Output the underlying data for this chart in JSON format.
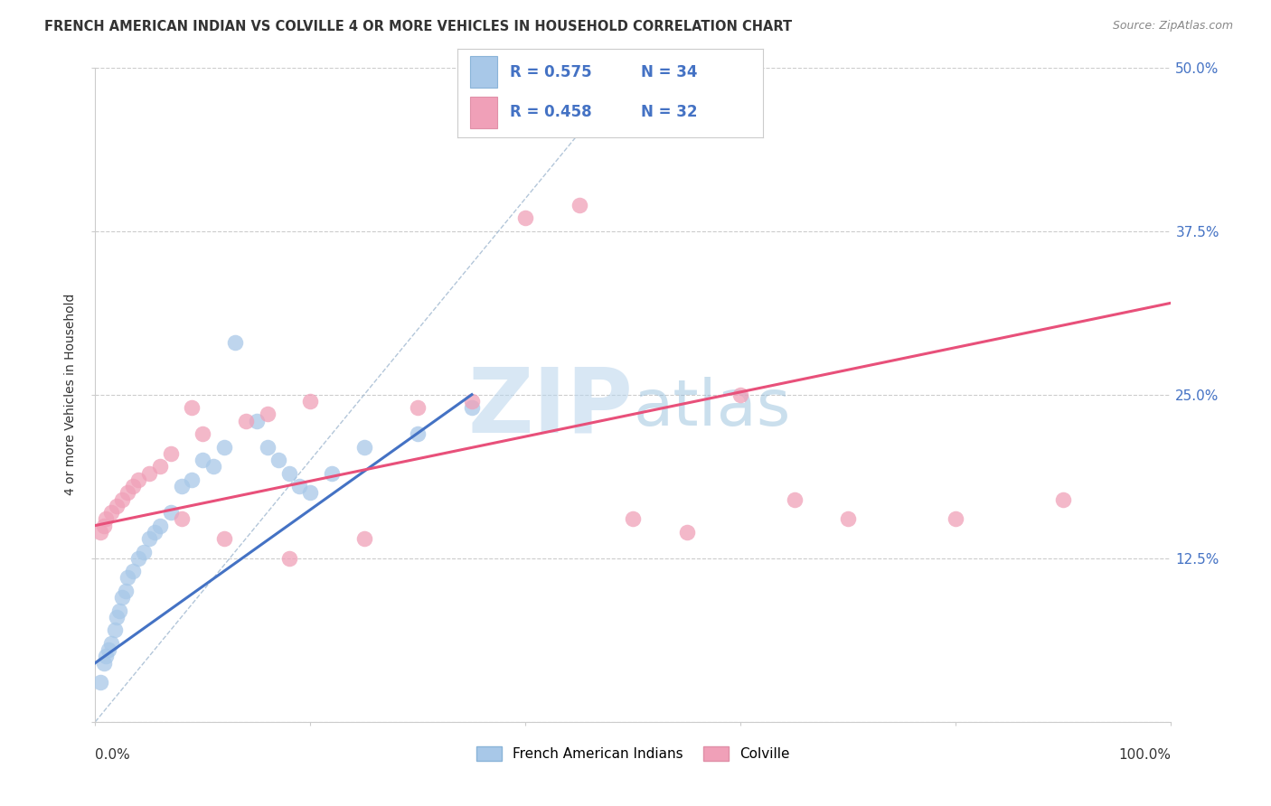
{
  "title": "FRENCH AMERICAN INDIAN VS COLVILLE 4 OR MORE VEHICLES IN HOUSEHOLD CORRELATION CHART",
  "source": "Source: ZipAtlas.com",
  "ylabel": "4 or more Vehicles in Household",
  "ytick_labels": [
    "",
    "12.5%",
    "25.0%",
    "37.5%",
    "50.0%"
  ],
  "ytick_values": [
    0.0,
    12.5,
    25.0,
    37.5,
    50.0
  ],
  "xlim": [
    0.0,
    100.0
  ],
  "ylim": [
    0.0,
    50.0
  ],
  "legend_label1": "French American Indians",
  "legend_label2": "Colville",
  "blue_color": "#a8c8e8",
  "pink_color": "#f0a0b8",
  "blue_line_color": "#4472c4",
  "pink_line_color": "#e8507a",
  "diag_line_color": "#a0b8d0",
  "R1": 0.575,
  "N1": 34,
  "R2": 0.458,
  "N2": 32,
  "blue_x": [
    0.5,
    0.8,
    1.0,
    1.2,
    1.5,
    1.8,
    2.0,
    2.2,
    2.5,
    2.8,
    3.0,
    3.5,
    4.0,
    4.5,
    5.0,
    5.5,
    6.0,
    7.0,
    8.0,
    9.0,
    10.0,
    11.0,
    12.0,
    13.0,
    15.0,
    16.0,
    17.0,
    18.0,
    19.0,
    20.0,
    22.0,
    25.0,
    30.0,
    35.0
  ],
  "blue_y": [
    3.0,
    4.5,
    5.0,
    5.5,
    6.0,
    7.0,
    8.0,
    8.5,
    9.5,
    10.0,
    11.0,
    11.5,
    12.5,
    13.0,
    14.0,
    14.5,
    15.0,
    16.0,
    18.0,
    18.5,
    20.0,
    19.5,
    21.0,
    29.0,
    23.0,
    21.0,
    20.0,
    19.0,
    18.0,
    17.5,
    19.0,
    21.0,
    22.0,
    24.0
  ],
  "pink_x": [
    0.5,
    0.8,
    1.0,
    1.5,
    2.0,
    2.5,
    3.0,
    3.5,
    4.0,
    5.0,
    6.0,
    7.0,
    8.0,
    9.0,
    10.0,
    12.0,
    14.0,
    16.0,
    18.0,
    20.0,
    25.0,
    30.0,
    35.0,
    40.0,
    45.0,
    50.0,
    55.0,
    60.0,
    65.0,
    70.0,
    80.0,
    90.0
  ],
  "pink_y": [
    14.5,
    15.0,
    15.5,
    16.0,
    16.5,
    17.0,
    17.5,
    18.0,
    18.5,
    19.0,
    19.5,
    20.5,
    15.5,
    24.0,
    22.0,
    14.0,
    23.0,
    23.5,
    12.5,
    24.5,
    14.0,
    24.0,
    24.5,
    38.5,
    39.5,
    15.5,
    14.5,
    25.0,
    17.0,
    15.5,
    15.5,
    17.0
  ],
  "blue_line_x": [
    0.0,
    35.0
  ],
  "blue_line_y": [
    4.5,
    25.0
  ],
  "pink_line_x": [
    0.0,
    100.0
  ],
  "pink_line_y": [
    15.0,
    32.0
  ]
}
